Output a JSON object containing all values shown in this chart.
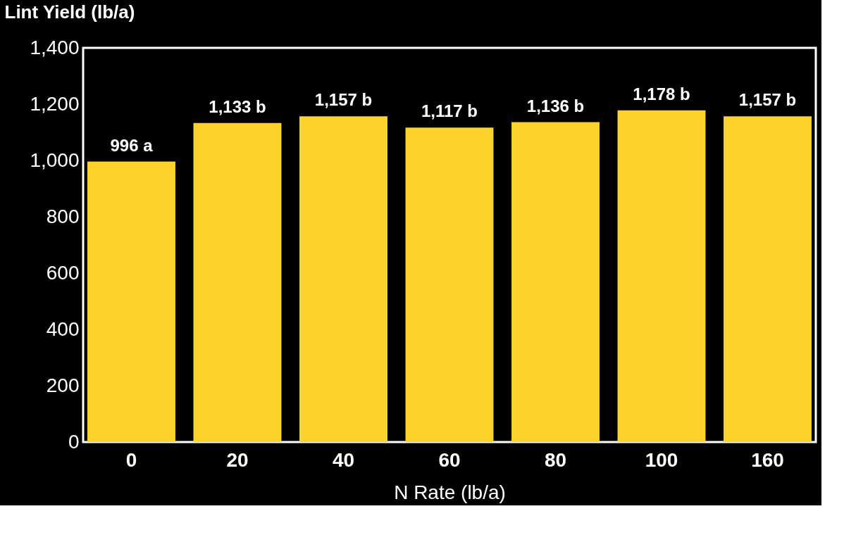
{
  "chart_data": {
    "type": "bar",
    "xlabel": "N Rate (lb/a)",
    "ylabel": "Lint Yield (lb/a)",
    "categories": [
      "0",
      "20",
      "40",
      "60",
      "80",
      "100",
      "160"
    ],
    "values": [
      996,
      1133,
      1157,
      1117,
      1136,
      1178,
      1157
    ],
    "value_labels": [
      "996 a",
      "1,133 b",
      "1,157 b",
      "1,117 b",
      "1,136 b",
      "1,178 b",
      "1,157 b"
    ],
    "color": "#fdd22a",
    "ylim": [
      0,
      1400
    ],
    "yticks": [
      0,
      200,
      400,
      600,
      800,
      {
        "value": 1000,
        "label": "1,000"
      },
      {
        "value": 1200,
        "label": "1,200"
      },
      {
        "value": 1400,
        "label": "1,400"
      }
    ],
    "grid": false
  }
}
